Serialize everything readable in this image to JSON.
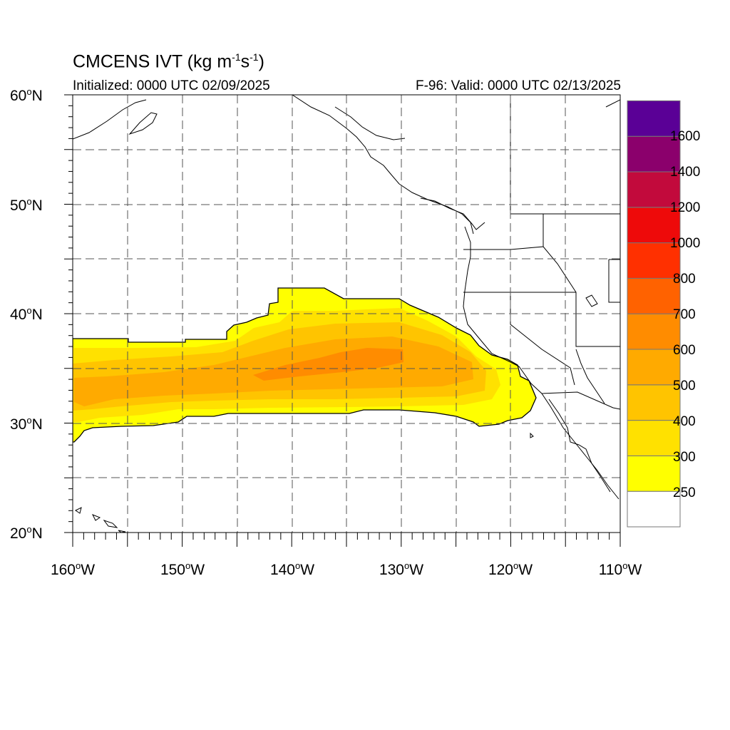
{
  "title": {
    "main": "CMCENS IVT (kg m",
    "exp1": "-1",
    "mid": "s",
    "exp2": "-1",
    "close": ")"
  },
  "subtitle_left": "Initialized: 0000 UTC 02/09/2025",
  "subtitle_right": "F-96: Valid: 0000 UTC 02/13/2025",
  "lat_labels": [
    "60",
    "50",
    "40",
    "30",
    "20"
  ],
  "lon_labels": [
    "160",
    "150",
    "140",
    "130",
    "120",
    "110"
  ],
  "lat_suffix": "N",
  "lon_suffix": "W",
  "degree": "o",
  "colorbar": {
    "labels": [
      "250",
      "300",
      "400",
      "500",
      "600",
      "700",
      "800",
      "1000",
      "1200",
      "1400",
      "1600"
    ],
    "colors": [
      "#ffffff",
      "#ffff00",
      "#ffe100",
      "#ffc400",
      "#ffaa00",
      "#ff8c00",
      "#ff6200",
      "#ff3000",
      "#ee0a0a",
      "#c20a3c",
      "#8b006c",
      "#5a0096"
    ]
  },
  "chart_data": {
    "type": "heatmap",
    "variable": "IVT",
    "units": "kg m-1 s-1",
    "lon_range": [
      -160,
      -110
    ],
    "lat_range": [
      20,
      60
    ],
    "grid_lines": true,
    "levels": [
      250,
      300,
      400,
      500,
      600,
      700,
      800,
      1000,
      1200,
      1400,
      1600
    ]
  }
}
